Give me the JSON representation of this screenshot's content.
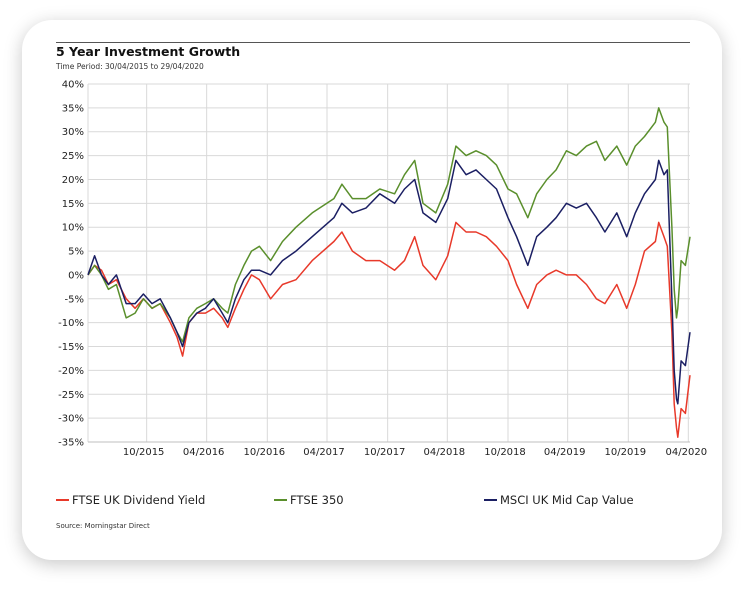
{
  "colors": {
    "ftse_uk_dividend_yield": "#e8392a",
    "ftse_350": "#5a8f2c",
    "msci_uk_mid_cap_value": "#1b1f63",
    "grid": "#d9d9d9"
  },
  "footer": {
    "source": "Source: Morningstar Direct"
  },
  "chart_data": {
    "type": "line",
    "title": "5 Year Investment Growth",
    "subtitle": "Time Period: 30/04/2015 to 29/04/2020",
    "xlabel": "",
    "ylabel": "",
    "x_range": [
      "2015-04-30",
      "2020-04-29"
    ],
    "x_ticks": [
      "10/2015",
      "04/2016",
      "10/2016",
      "04/2017",
      "10/2017",
      "04/2018",
      "10/2018",
      "04/2019",
      "10/2019",
      "04/2020"
    ],
    "ylim": [
      -35,
      40
    ],
    "y_ticks": [
      "40%",
      "35%",
      "30%",
      "25%",
      "20%",
      "15%",
      "10%",
      "5%",
      "0%",
      "-5%",
      "-10%",
      "-15%",
      "-20%",
      "-25%",
      "-30%",
      "-35%"
    ],
    "y_unit": "%",
    "grid": true,
    "legend_position": "bottom",
    "series": [
      {
        "name": "FTSE UK Dividend Yield",
        "color_key": "ftse_uk_dividend_yield",
        "points": [
          [
            "2015-04-30",
            0
          ],
          [
            "2015-05-20",
            2
          ],
          [
            "2015-06-10",
            1
          ],
          [
            "2015-07-01",
            -2
          ],
          [
            "2015-07-25",
            -1
          ],
          [
            "2015-08-24",
            -5
          ],
          [
            "2015-09-20",
            -7
          ],
          [
            "2015-10-15",
            -5
          ],
          [
            "2015-11-10",
            -7
          ],
          [
            "2015-12-05",
            -6
          ],
          [
            "2016-01-05",
            -10
          ],
          [
            "2016-01-25",
            -13
          ],
          [
            "2016-02-11",
            -17
          ],
          [
            "2016-03-01",
            -10
          ],
          [
            "2016-03-25",
            -8
          ],
          [
            "2016-04-20",
            -8
          ],
          [
            "2016-05-15",
            -7
          ],
          [
            "2016-06-10",
            -9
          ],
          [
            "2016-06-27",
            -11
          ],
          [
            "2016-07-20",
            -7
          ],
          [
            "2016-08-15",
            -3
          ],
          [
            "2016-09-07",
            0
          ],
          [
            "2016-10-01",
            -1
          ],
          [
            "2016-11-04",
            -5
          ],
          [
            "2016-12-10",
            -2
          ],
          [
            "2017-01-20",
            -1
          ],
          [
            "2017-03-10",
            3
          ],
          [
            "2017-05-15",
            7
          ],
          [
            "2017-06-08",
            9
          ],
          [
            "2017-07-10",
            5
          ],
          [
            "2017-08-20",
            3
          ],
          [
            "2017-10-01",
            3
          ],
          [
            "2017-11-15",
            1
          ],
          [
            "2017-12-15",
            3
          ],
          [
            "2018-01-15",
            8
          ],
          [
            "2018-02-09",
            2
          ],
          [
            "2018-03-20",
            -1
          ],
          [
            "2018-04-25",
            4
          ],
          [
            "2018-05-20",
            11
          ],
          [
            "2018-06-20",
            9
          ],
          [
            "2018-07-20",
            9
          ],
          [
            "2018-08-20",
            8
          ],
          [
            "2018-09-20",
            6
          ],
          [
            "2018-10-25",
            3
          ],
          [
            "2018-11-20",
            -2
          ],
          [
            "2018-12-24",
            -7
          ],
          [
            "2019-01-20",
            -2
          ],
          [
            "2019-02-20",
            0
          ],
          [
            "2019-03-20",
            1
          ],
          [
            "2019-04-20",
            0
          ],
          [
            "2019-05-20",
            0
          ],
          [
            "2019-06-20",
            -2
          ],
          [
            "2019-07-20",
            -5
          ],
          [
            "2019-08-15",
            -6
          ],
          [
            "2019-09-20",
            -2
          ],
          [
            "2019-10-20",
            -7
          ],
          [
            "2019-11-15",
            -2
          ],
          [
            "2019-12-13",
            5
          ],
          [
            "2020-01-15",
            7
          ],
          [
            "2020-01-25",
            11
          ],
          [
            "2020-02-10",
            8
          ],
          [
            "2020-02-20",
            6
          ],
          [
            "2020-03-05",
            -12
          ],
          [
            "2020-03-12",
            -27
          ],
          [
            "2020-03-19",
            -32
          ],
          [
            "2020-03-23",
            -34
          ],
          [
            "2020-04-02",
            -28
          ],
          [
            "2020-04-15",
            -29
          ],
          [
            "2020-04-29",
            -21
          ]
        ]
      },
      {
        "name": "FTSE 350",
        "color_key": "ftse_350",
        "points": [
          [
            "2015-04-30",
            0
          ],
          [
            "2015-05-20",
            2
          ],
          [
            "2015-06-10",
            0
          ],
          [
            "2015-07-01",
            -3
          ],
          [
            "2015-07-25",
            -2
          ],
          [
            "2015-08-24",
            -9
          ],
          [
            "2015-09-20",
            -8
          ],
          [
            "2015-10-15",
            -5
          ],
          [
            "2015-11-10",
            -7
          ],
          [
            "2015-12-05",
            -6
          ],
          [
            "2016-01-05",
            -9
          ],
          [
            "2016-01-25",
            -12
          ],
          [
            "2016-02-11",
            -14
          ],
          [
            "2016-03-01",
            -9
          ],
          [
            "2016-03-25",
            -7
          ],
          [
            "2016-04-20",
            -6
          ],
          [
            "2016-05-15",
            -5
          ],
          [
            "2016-06-10",
            -7
          ],
          [
            "2016-06-27",
            -8
          ],
          [
            "2016-07-20",
            -2
          ],
          [
            "2016-08-15",
            2
          ],
          [
            "2016-09-07",
            5
          ],
          [
            "2016-10-01",
            6
          ],
          [
            "2016-11-04",
            3
          ],
          [
            "2016-12-10",
            7
          ],
          [
            "2017-01-20",
            10
          ],
          [
            "2017-03-10",
            13
          ],
          [
            "2017-05-15",
            16
          ],
          [
            "2017-06-08",
            19
          ],
          [
            "2017-07-10",
            16
          ],
          [
            "2017-08-20",
            16
          ],
          [
            "2017-10-01",
            18
          ],
          [
            "2017-11-15",
            17
          ],
          [
            "2017-12-15",
            21
          ],
          [
            "2018-01-15",
            24
          ],
          [
            "2018-02-09",
            15
          ],
          [
            "2018-03-20",
            13
          ],
          [
            "2018-04-25",
            19
          ],
          [
            "2018-05-20",
            27
          ],
          [
            "2018-06-20",
            25
          ],
          [
            "2018-07-20",
            26
          ],
          [
            "2018-08-20",
            25
          ],
          [
            "2018-09-20",
            23
          ],
          [
            "2018-10-25",
            18
          ],
          [
            "2018-11-20",
            17
          ],
          [
            "2018-12-24",
            12
          ],
          [
            "2019-01-20",
            17
          ],
          [
            "2019-02-20",
            20
          ],
          [
            "2019-03-20",
            22
          ],
          [
            "2019-04-20",
            26
          ],
          [
            "2019-05-20",
            25
          ],
          [
            "2019-06-20",
            27
          ],
          [
            "2019-07-20",
            28
          ],
          [
            "2019-08-15",
            24
          ],
          [
            "2019-09-20",
            27
          ],
          [
            "2019-10-20",
            23
          ],
          [
            "2019-11-15",
            27
          ],
          [
            "2019-12-13",
            29
          ],
          [
            "2020-01-15",
            32
          ],
          [
            "2020-01-25",
            35
          ],
          [
            "2020-02-10",
            32
          ],
          [
            "2020-02-20",
            31
          ],
          [
            "2020-03-05",
            10
          ],
          [
            "2020-03-12",
            -3
          ],
          [
            "2020-03-19",
            -9
          ],
          [
            "2020-03-23",
            -7
          ],
          [
            "2020-04-02",
            3
          ],
          [
            "2020-04-15",
            2
          ],
          [
            "2020-04-29",
            8
          ]
        ]
      },
      {
        "name": "MSCI UK Mid Cap Value",
        "color_key": "msci_uk_mid_cap_value",
        "points": [
          [
            "2015-04-30",
            0
          ],
          [
            "2015-05-20",
            4
          ],
          [
            "2015-06-10",
            0
          ],
          [
            "2015-07-01",
            -2
          ],
          [
            "2015-07-25",
            0
          ],
          [
            "2015-08-24",
            -6
          ],
          [
            "2015-09-20",
            -6
          ],
          [
            "2015-10-15",
            -4
          ],
          [
            "2015-11-10",
            -6
          ],
          [
            "2015-12-05",
            -5
          ],
          [
            "2016-01-05",
            -9
          ],
          [
            "2016-01-25",
            -12
          ],
          [
            "2016-02-11",
            -15
          ],
          [
            "2016-03-01",
            -10
          ],
          [
            "2016-03-25",
            -8
          ],
          [
            "2016-04-20",
            -7
          ],
          [
            "2016-05-15",
            -5
          ],
          [
            "2016-06-10",
            -8
          ],
          [
            "2016-06-27",
            -10
          ],
          [
            "2016-07-20",
            -5
          ],
          [
            "2016-08-15",
            -1
          ],
          [
            "2016-09-07",
            1
          ],
          [
            "2016-10-01",
            1
          ],
          [
            "2016-11-04",
            0
          ],
          [
            "2016-12-10",
            3
          ],
          [
            "2017-01-20",
            5
          ],
          [
            "2017-03-10",
            8
          ],
          [
            "2017-05-15",
            12
          ],
          [
            "2017-06-08",
            15
          ],
          [
            "2017-07-10",
            13
          ],
          [
            "2017-08-20",
            14
          ],
          [
            "2017-10-01",
            17
          ],
          [
            "2017-11-15",
            15
          ],
          [
            "2017-12-15",
            18
          ],
          [
            "2018-01-15",
            20
          ],
          [
            "2018-02-09",
            13
          ],
          [
            "2018-03-20",
            11
          ],
          [
            "2018-04-25",
            16
          ],
          [
            "2018-05-20",
            24
          ],
          [
            "2018-06-20",
            21
          ],
          [
            "2018-07-20",
            22
          ],
          [
            "2018-08-20",
            20
          ],
          [
            "2018-09-20",
            18
          ],
          [
            "2018-10-25",
            12
          ],
          [
            "2018-11-20",
            8
          ],
          [
            "2018-12-24",
            2
          ],
          [
            "2019-01-20",
            8
          ],
          [
            "2019-02-20",
            10
          ],
          [
            "2019-03-20",
            12
          ],
          [
            "2019-04-20",
            15
          ],
          [
            "2019-05-20",
            14
          ],
          [
            "2019-06-20",
            15
          ],
          [
            "2019-07-20",
            12
          ],
          [
            "2019-08-15",
            9
          ],
          [
            "2019-09-20",
            13
          ],
          [
            "2019-10-20",
            8
          ],
          [
            "2019-11-15",
            13
          ],
          [
            "2019-12-13",
            17
          ],
          [
            "2020-01-15",
            20
          ],
          [
            "2020-01-25",
            24
          ],
          [
            "2020-02-10",
            21
          ],
          [
            "2020-02-20",
            22
          ],
          [
            "2020-03-05",
            -5
          ],
          [
            "2020-03-12",
            -20
          ],
          [
            "2020-03-19",
            -26
          ],
          [
            "2020-03-23",
            -27
          ],
          [
            "2020-04-02",
            -18
          ],
          [
            "2020-04-15",
            -19
          ],
          [
            "2020-04-29",
            -12
          ]
        ]
      }
    ]
  }
}
